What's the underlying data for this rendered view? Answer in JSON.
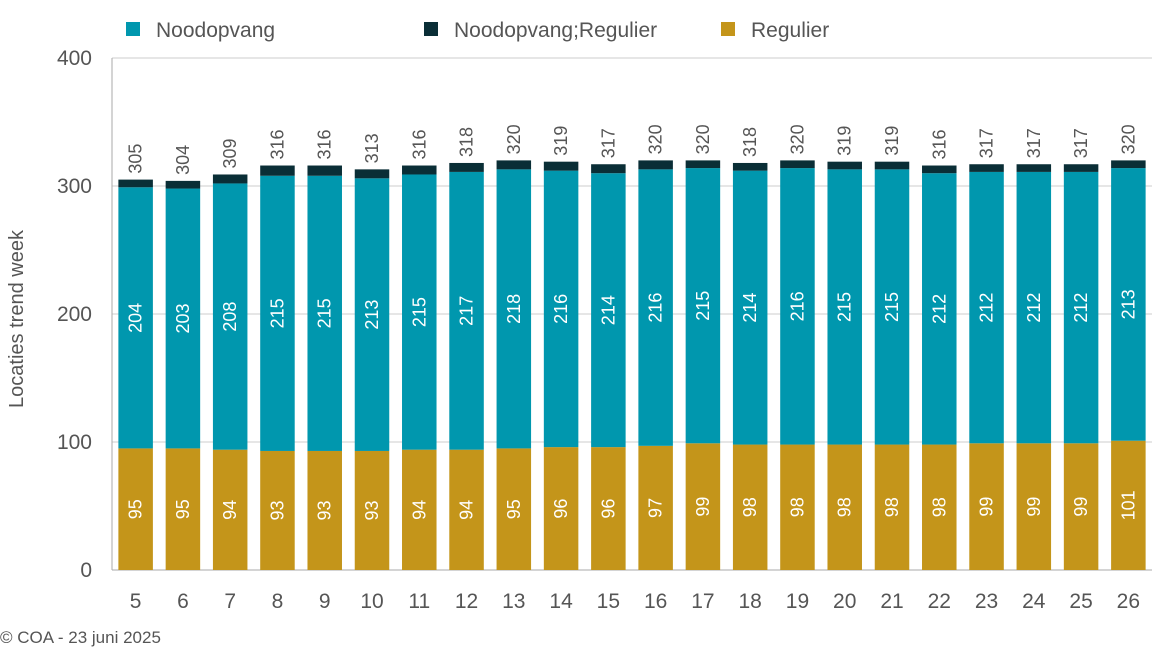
{
  "footer": "© COA - 23 juni 2025",
  "colors": {
    "Noodopvang": "#0097AE",
    "Noodopvang;Regulier": "#0A2E36",
    "Regulier": "#C4951A",
    "axis_text": "#555555",
    "grid": "#cccccc"
  },
  "chart_data": {
    "type": "bar",
    "stacked": true,
    "ylabel": "Locaties trend week",
    "xlabel": "",
    "ylim": [
      0,
      400
    ],
    "yticks": [
      0,
      100,
      200,
      300,
      400
    ],
    "grid": true,
    "legend_position": "top",
    "categories": [
      "5",
      "6",
      "7",
      "8",
      "9",
      "10",
      "11",
      "12",
      "13",
      "14",
      "15",
      "16",
      "17",
      "18",
      "19",
      "20",
      "21",
      "22",
      "23",
      "24",
      "25",
      "26"
    ],
    "series": [
      {
        "name": "Regulier",
        "values": [
          95,
          95,
          94,
          93,
          93,
          93,
          94,
          94,
          95,
          96,
          96,
          97,
          99,
          98,
          98,
          98,
          98,
          98,
          99,
          99,
          99,
          101
        ]
      },
      {
        "name": "Noodopvang",
        "values": [
          204,
          203,
          208,
          215,
          215,
          213,
          215,
          217,
          218,
          216,
          214,
          216,
          215,
          214,
          216,
          215,
          215,
          212,
          212,
          212,
          212,
          213
        ]
      },
      {
        "name": "Noodopvang;Regulier",
        "values": [
          6,
          6,
          7,
          8,
          8,
          7,
          7,
          7,
          7,
          7,
          7,
          7,
          6,
          6,
          6,
          6,
          6,
          6,
          6,
          6,
          6,
          6
        ]
      }
    ],
    "totals": [
      305,
      304,
      309,
      316,
      316,
      313,
      316,
      318,
      320,
      319,
      317,
      320,
      320,
      318,
      320,
      319,
      319,
      316,
      317,
      317,
      317,
      320
    ],
    "legend": [
      "Noodopvang",
      "Noodopvang;Regulier",
      "Regulier"
    ]
  }
}
